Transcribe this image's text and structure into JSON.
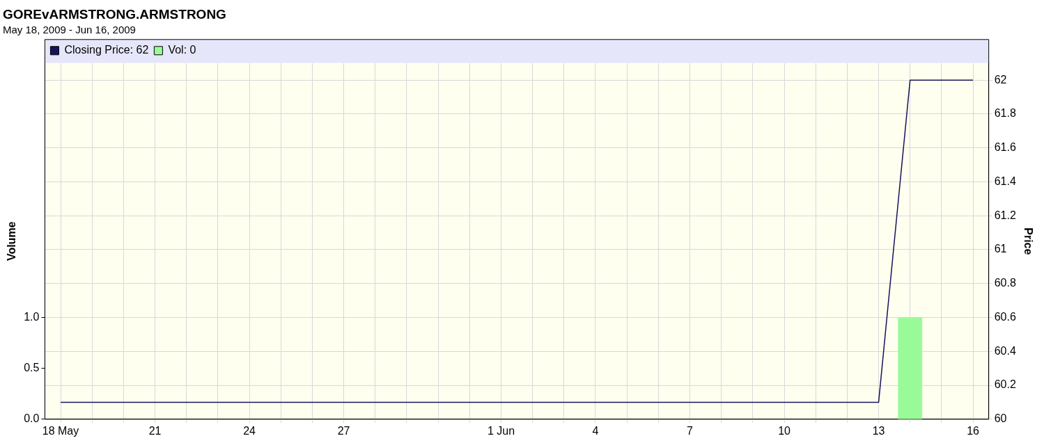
{
  "chart_data": {
    "type": "line",
    "title": "GOREvARMSTRONG.ARMSTRONG",
    "subtitle": "May 18, 2009 - Jun 16, 2009",
    "ylabel": "Volume",
    "y2label": "Price",
    "series": [
      {
        "name": "Closing Price: 62",
        "axis": "y2",
        "color": "#14145a",
        "x": [
          "2009-05-18",
          "2009-06-13",
          "2009-06-14",
          "2009-06-16"
        ],
        "values": [
          60.1,
          60.1,
          62,
          62
        ]
      },
      {
        "name": "Vol: 0",
        "type": "bar",
        "color": "#98fb98",
        "x": [
          "2009-06-14"
        ],
        "values": [
          1.0
        ]
      }
    ],
    "xlim": [
      "2009-05-17T12:00",
      "2009-06-16T12:00"
    ],
    "xticks": [
      {
        "value": "2009-05-18",
        "label": "18 May"
      },
      {
        "value": "2009-05-19",
        "label": null
      },
      {
        "value": "2009-05-20",
        "label": null
      },
      {
        "value": "2009-05-21",
        "label": "21"
      },
      {
        "value": "2009-05-22",
        "label": null
      },
      {
        "value": "2009-05-23",
        "label": null
      },
      {
        "value": "2009-05-24",
        "label": "24"
      },
      {
        "value": "2009-05-25",
        "label": null
      },
      {
        "value": "2009-05-26",
        "label": null
      },
      {
        "value": "2009-05-27",
        "label": "27"
      },
      {
        "value": "2009-05-28",
        "label": null
      },
      {
        "value": "2009-05-29",
        "label": null
      },
      {
        "value": "2009-05-30",
        "label": null
      },
      {
        "value": "2009-05-31",
        "label": null
      },
      {
        "value": "2009-06-01",
        "label": "1 Jun"
      },
      {
        "value": "2009-06-02",
        "label": null
      },
      {
        "value": "2009-06-03",
        "label": null
      },
      {
        "value": "2009-06-04",
        "label": "4"
      },
      {
        "value": "2009-06-05",
        "label": null
      },
      {
        "value": "2009-06-06",
        "label": null
      },
      {
        "value": "2009-06-07",
        "label": "7"
      },
      {
        "value": "2009-06-08",
        "label": null
      },
      {
        "value": "2009-06-09",
        "label": null
      },
      {
        "value": "2009-06-10",
        "label": "10"
      },
      {
        "value": "2009-06-11",
        "label": null
      },
      {
        "value": "2009-06-12",
        "label": null
      },
      {
        "value": "2009-06-13",
        "label": "13"
      },
      {
        "value": "2009-06-14",
        "label": null
      },
      {
        "value": "2009-06-15",
        "label": null
      },
      {
        "value": "2009-06-16",
        "label": "16"
      }
    ],
    "ylim": [
      0,
      3.5
    ],
    "yticks": [
      {
        "value": 0,
        "label": "0.0"
      },
      {
        "value": 0.5,
        "label": "0.5"
      },
      {
        "value": 1,
        "label": "1.0"
      }
    ],
    "y2lim": [
      60,
      62.1
    ],
    "y2ticks": [
      60,
      60.2,
      60.4,
      60.6,
      60.8,
      61,
      61.2,
      61.4,
      61.6,
      61.8,
      62
    ],
    "grid": true,
    "legend": "top left",
    "marker": "none",
    "line_style": "solid"
  }
}
